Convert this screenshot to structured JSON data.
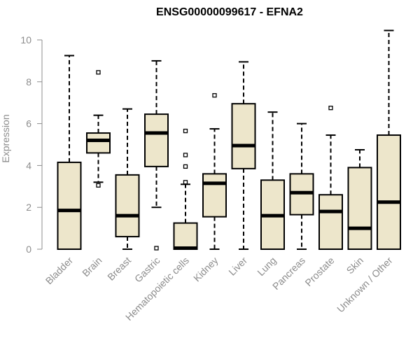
{
  "chart_data": {
    "type": "boxplot",
    "title": "ENSG00000099617 - EFNA2",
    "ylabel": "Expression",
    "xlabel": "",
    "ylim": [
      0,
      10
    ],
    "yticks": [
      0,
      2,
      4,
      6,
      8,
      10
    ],
    "box_fill": "#EDE6CB",
    "box_stroke": "#000000",
    "grid": false,
    "categories": [
      "Bladder",
      "Brain",
      "Breast",
      "Gastric",
      "Hematopoietic cells",
      "Kidney",
      "Liver",
      "Lung",
      "Pancreas",
      "Prostate",
      "Skin",
      "Unknown / Other"
    ],
    "boxes": [
      {
        "category": "Bladder",
        "min": 0,
        "q1": 0,
        "median": 1.85,
        "q3": 4.15,
        "max": 9.25,
        "outliers": []
      },
      {
        "category": "Brain",
        "min": 3.2,
        "q1": 4.6,
        "median": 5.2,
        "q3": 5.55,
        "max": 6.4,
        "outliers": [
          8.45,
          3.05
        ]
      },
      {
        "category": "Breast",
        "min": 0,
        "q1": 0.6,
        "median": 1.6,
        "q3": 3.55,
        "max": 6.7,
        "outliers": []
      },
      {
        "category": "Gastric",
        "min": 2.0,
        "q1": 3.95,
        "median": 5.55,
        "q3": 6.45,
        "max": 9.0,
        "outliers": [
          0.05
        ]
      },
      {
        "category": "Hematopoietic cells",
        "min": 0,
        "q1": 0,
        "median": 0.05,
        "q3": 1.25,
        "max": 3.1,
        "outliers": [
          5.65,
          4.5,
          3.95,
          3.2
        ]
      },
      {
        "category": "Kidney",
        "min": 0,
        "q1": 1.55,
        "median": 3.15,
        "q3": 3.6,
        "max": 5.75,
        "outliers": [
          7.35
        ]
      },
      {
        "category": "Liver",
        "min": 0,
        "q1": 3.85,
        "median": 4.95,
        "q3": 6.95,
        "max": 8.95,
        "outliers": []
      },
      {
        "category": "Lung",
        "min": 0,
        "q1": 0,
        "median": 1.6,
        "q3": 3.3,
        "max": 6.55,
        "outliers": []
      },
      {
        "category": "Pancreas",
        "min": 0,
        "q1": 1.65,
        "median": 2.7,
        "q3": 3.6,
        "max": 6.0,
        "outliers": []
      },
      {
        "category": "Prostate",
        "min": 0,
        "q1": 0,
        "median": 1.8,
        "q3": 2.6,
        "max": 5.45,
        "outliers": [
          6.75
        ]
      },
      {
        "category": "Skin",
        "min": 0,
        "q1": 0,
        "median": 1.0,
        "q3": 3.9,
        "max": 4.75,
        "outliers": []
      },
      {
        "category": "Unknown / Other",
        "min": 0,
        "q1": 0,
        "median": 2.25,
        "q3": 5.45,
        "max": 10.45,
        "outliers": []
      }
    ]
  }
}
